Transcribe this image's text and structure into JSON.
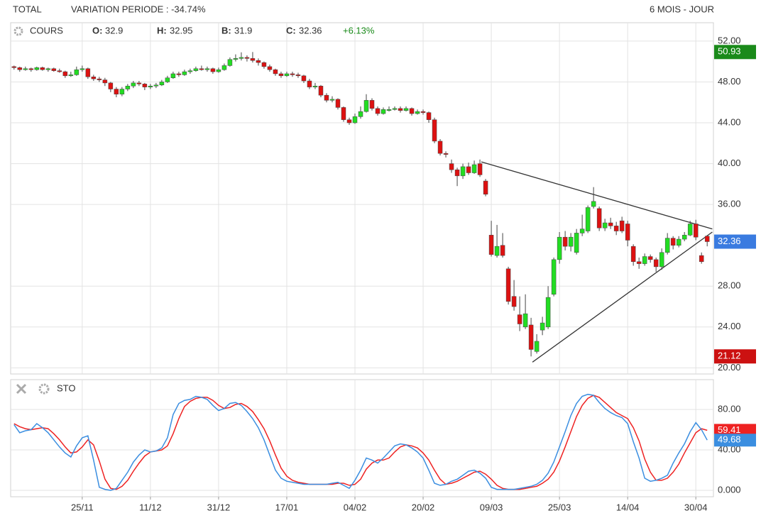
{
  "header": {
    "title": "TOTAL",
    "variation": "VARIATION PERIODE : -34.74%",
    "period": "6 MOIS - JOUR"
  },
  "chart_data": [
    {
      "type": "candlestick",
      "title": "COURS",
      "legend": [
        {
          "label": "O:",
          "value": 32.9
        },
        {
          "label": "H:",
          "value": 32.95
        },
        {
          "label": "B:",
          "value": 31.9
        },
        {
          "label": "C:",
          "value": 32.36
        }
      ],
      "change": "+6.13%",
      "up_color": "#22dd22",
      "down_color": "#dd1111",
      "xlim": [
        -0.6,
        123.1
      ],
      "ylim": [
        19.4,
        53.8
      ],
      "yticks": [
        {
          "value": 52,
          "label": "52.00"
        },
        {
          "value": 48,
          "label": "48.00"
        },
        {
          "value": 44,
          "label": "44.00"
        },
        {
          "value": 40,
          "label": "40.00"
        },
        {
          "value": 36,
          "label": "36.00"
        },
        {
          "value": 28,
          "label": "28.00"
        },
        {
          "value": 24,
          "label": "24.00"
        },
        {
          "value": 20,
          "label": "20.00"
        }
      ],
      "grid": true,
      "price_labels": [
        {
          "value": 50.93,
          "label": "50.93",
          "color": "#1a8a1a"
        },
        {
          "value": 32.36,
          "label": "32.36",
          "color": "#3a7be0"
        },
        {
          "value": 21.12,
          "label": "21.12",
          "color": "#cc1111"
        }
      ],
      "trendlines": [
        {
          "x": [
            82.25,
            122.9
          ],
          "y": [
            40.17,
            33.6
          ]
        },
        {
          "x": [
            91.25,
            122.9
          ],
          "y": [
            20.56,
            33.3
          ]
        }
      ],
      "candles": [
        [
          49.5,
          49.6,
          49.2,
          49.4
        ],
        [
          49.4,
          49.5,
          49.0,
          49.2
        ],
        [
          49.2,
          49.5,
          49.1,
          49.3
        ],
        [
          49.3,
          49.4,
          49.0,
          49.2
        ],
        [
          49.2,
          49.5,
          49.1,
          49.4
        ],
        [
          49.4,
          49.5,
          49.1,
          49.2
        ],
        [
          49.2,
          49.4,
          49.0,
          49.3
        ],
        [
          49.3,
          49.4,
          49.0,
          49.1
        ],
        [
          49.1,
          49.3,
          48.9,
          49.0
        ],
        [
          49.0,
          49.1,
          48.4,
          48.6
        ],
        [
          48.6,
          49.0,
          48.5,
          48.7
        ],
        [
          48.7,
          49.5,
          48.6,
          49.2
        ],
        [
          49.2,
          49.6,
          49.0,
          49.3
        ],
        [
          49.3,
          49.4,
          48.3,
          48.5
        ],
        [
          48.5,
          48.7,
          48.1,
          48.3
        ],
        [
          48.3,
          48.5,
          48.0,
          48.2
        ],
        [
          48.2,
          48.4,
          47.6,
          47.9
        ],
        [
          47.9,
          48.0,
          47.0,
          47.3
        ],
        [
          47.3,
          47.5,
          46.5,
          46.8
        ],
        [
          46.8,
          47.5,
          46.6,
          47.3
        ],
        [
          47.3,
          47.8,
          47.1,
          47.6
        ],
        [
          47.6,
          48.1,
          47.4,
          47.9
        ],
        [
          47.9,
          48.1,
          47.6,
          47.8
        ],
        [
          47.8,
          47.9,
          47.2,
          47.5
        ],
        [
          47.5,
          47.8,
          47.3,
          47.6
        ],
        [
          47.6,
          47.9,
          47.4,
          47.7
        ],
        [
          47.7,
          48.2,
          47.6,
          48.0
        ],
        [
          48.0,
          48.6,
          47.9,
          48.4
        ],
        [
          48.4,
          49.0,
          48.3,
          48.8
        ],
        [
          48.8,
          49.0,
          48.5,
          48.7
        ],
        [
          48.7,
          49.2,
          48.6,
          49.0
        ],
        [
          49.0,
          49.3,
          48.8,
          49.1
        ],
        [
          49.1,
          49.5,
          49.0,
          49.3
        ],
        [
          49.3,
          49.6,
          49.1,
          49.2
        ],
        [
          49.2,
          49.5,
          49.0,
          49.3
        ],
        [
          49.3,
          49.4,
          48.8,
          49.0
        ],
        [
          49.0,
          49.4,
          48.9,
          49.2
        ],
        [
          49.2,
          49.8,
          49.1,
          49.6
        ],
        [
          49.6,
          50.4,
          49.5,
          50.2
        ],
        [
          50.2,
          50.7,
          50.0,
          50.3
        ],
        [
          50.3,
          50.9,
          50.1,
          50.4
        ],
        [
          50.4,
          50.6,
          50.0,
          50.3
        ],
        [
          50.3,
          50.93,
          49.9,
          50.1
        ],
        [
          50.1,
          50.3,
          49.6,
          49.9
        ],
        [
          49.9,
          50.0,
          49.3,
          49.5
        ],
        [
          49.5,
          49.7,
          49.0,
          49.2
        ],
        [
          49.2,
          49.3,
          48.6,
          48.8
        ],
        [
          48.8,
          49.0,
          48.4,
          48.6
        ],
        [
          48.6,
          49.0,
          48.5,
          48.8
        ],
        [
          48.8,
          49.0,
          48.5,
          48.7
        ],
        [
          48.7,
          48.9,
          48.4,
          48.6
        ],
        [
          48.6,
          48.7,
          47.9,
          48.1
        ],
        [
          48.1,
          48.3,
          47.3,
          47.5
        ],
        [
          47.5,
          47.9,
          47.3,
          47.6
        ],
        [
          47.6,
          47.7,
          46.5,
          46.7
        ],
        [
          46.7,
          46.9,
          46.0,
          46.2
        ],
        [
          46.2,
          46.6,
          46.0,
          46.3
        ],
        [
          46.3,
          46.4,
          45.3,
          45.5
        ],
        [
          45.5,
          45.6,
          44.1,
          44.3
        ],
        [
          44.3,
          44.5,
          43.8,
          44.0
        ],
        [
          44.0,
          44.9,
          43.9,
          44.6
        ],
        [
          44.6,
          45.6,
          44.4,
          45.1
        ],
        [
          45.1,
          46.8,
          45.0,
          46.2
        ],
        [
          46.2,
          46.4,
          45.2,
          45.4
        ],
        [
          45.4,
          45.6,
          44.7,
          44.9
        ],
        [
          44.9,
          45.5,
          44.8,
          45.3
        ],
        [
          45.2,
          45.6,
          45.1,
          45.3
        ],
        [
          45.3,
          45.6,
          45.2,
          45.4
        ],
        [
          45.4,
          45.6,
          45.0,
          45.2
        ],
        [
          45.2,
          45.6,
          45.1,
          45.4
        ],
        [
          45.4,
          45.5,
          44.7,
          44.9
        ],
        [
          44.9,
          45.3,
          44.8,
          45.1
        ],
        [
          45.1,
          45.3,
          44.8,
          45.0
        ],
        [
          45.0,
          45.1,
          44.0,
          44.3
        ],
        [
          44.3,
          44.5,
          42.0,
          42.2
        ],
        [
          42.2,
          42.4,
          40.8,
          41.0
        ],
        [
          41.0,
          41.2,
          40.6,
          40.9
        ],
        [
          40.0,
          40.4,
          39.1,
          39.4
        ],
        [
          39.4,
          39.6,
          37.8,
          38.8
        ],
        [
          38.8,
          40.0,
          38.5,
          39.7
        ],
        [
          39.7,
          40.1,
          38.9,
          39.1
        ],
        [
          39.1,
          40.3,
          39.0,
          39.9
        ],
        [
          40.0,
          40.4,
          38.7,
          38.9
        ],
        [
          38.3,
          38.5,
          36.8,
          37.0
        ],
        [
          33.0,
          34.4,
          30.9,
          31.1
        ],
        [
          31.0,
          34.0,
          30.8,
          31.9
        ],
        [
          32.0,
          33.2,
          30.8,
          31.0
        ],
        [
          29.7,
          29.9,
          26.2,
          26.5
        ],
        [
          27.0,
          28.6,
          25.6,
          26.0
        ],
        [
          25.2,
          27.0,
          23.6,
          24.3
        ],
        [
          24.0,
          27.2,
          23.8,
          25.3
        ],
        [
          24.2,
          24.9,
          21.12,
          21.8
        ],
        [
          21.6,
          23.3,
          21.4,
          22.6
        ],
        [
          23.7,
          25.0,
          23.2,
          24.4
        ],
        [
          24.0,
          28.0,
          23.8,
          26.9
        ],
        [
          27.2,
          30.8,
          27.0,
          30.6
        ],
        [
          30.6,
          33.3,
          30.2,
          32.8
        ],
        [
          32.8,
          33.4,
          31.5,
          31.9
        ],
        [
          31.9,
          33.2,
          31.4,
          32.8
        ],
        [
          31.3,
          33.6,
          31.1,
          33.2
        ],
        [
          33.2,
          35.0,
          32.9,
          33.6
        ],
        [
          33.4,
          35.9,
          33.2,
          35.7
        ],
        [
          35.8,
          37.7,
          35.6,
          36.3
        ],
        [
          35.6,
          35.8,
          33.4,
          33.7
        ],
        [
          33.7,
          34.6,
          33.4,
          34.2
        ],
        [
          34.2,
          34.7,
          33.6,
          33.9
        ],
        [
          33.9,
          34.3,
          33.0,
          33.4
        ],
        [
          34.4,
          34.8,
          33.2,
          33.4
        ],
        [
          34.1,
          34.4,
          31.9,
          32.5
        ],
        [
          31.9,
          32.1,
          30.0,
          30.4
        ],
        [
          30.4,
          30.8,
          29.7,
          30.2
        ],
        [
          30.2,
          31.2,
          30.0,
          30.9
        ],
        [
          30.9,
          31.1,
          30.3,
          30.6
        ],
        [
          30.6,
          30.8,
          29.4,
          29.9
        ],
        [
          29.9,
          31.7,
          29.6,
          31.3
        ],
        [
          31.3,
          33.2,
          31.1,
          32.7
        ],
        [
          32.7,
          32.9,
          31.6,
          32.0
        ],
        [
          32.0,
          32.9,
          31.8,
          32.6
        ],
        [
          32.6,
          33.3,
          32.4,
          33.0
        ],
        [
          33.0,
          34.4,
          32.9,
          34.1
        ],
        [
          34.1,
          34.5,
          32.5,
          32.8
        ],
        [
          31.0,
          31.3,
          30.2,
          30.4
        ],
        [
          32.9,
          32.95,
          31.9,
          32.36
        ]
      ]
    },
    {
      "type": "line",
      "title": "STO",
      "xlim": [
        -0.6,
        123.1
      ],
      "ylim": [
        -6.3,
        109.5
      ],
      "yticks": [
        {
          "value": 80,
          "label": "80.00"
        },
        {
          "value": 40,
          "label": "40.00"
        },
        {
          "value": 0,
          "label": "0.000"
        }
      ],
      "grid": true,
      "xticks": [
        {
          "value": 12,
          "label": "25/11"
        },
        {
          "value": 24,
          "label": "11/12"
        },
        {
          "value": 36,
          "label": "31/12"
        },
        {
          "value": 48,
          "label": "17/01"
        },
        {
          "value": 60,
          "label": "04/02"
        },
        {
          "value": 72,
          "label": "20/02"
        },
        {
          "value": 84,
          "label": "09/03"
        },
        {
          "value": 96,
          "label": "25/03"
        },
        {
          "value": 108,
          "label": "14/04"
        },
        {
          "value": 120,
          "label": "30/04"
        }
      ],
      "series": [
        {
          "color": "#ee2222",
          "end_label": "59.41",
          "values": [
            66,
            63,
            61,
            60,
            61,
            62,
            61,
            56,
            50,
            43,
            37,
            38,
            43,
            50,
            45,
            29,
            11,
            2,
            1,
            4,
            10,
            19,
            27,
            34,
            38,
            39,
            40,
            44,
            56,
            71,
            83,
            88,
            91,
            92,
            92,
            89,
            84,
            81,
            82,
            85,
            86,
            83,
            78,
            70,
            61,
            49,
            35,
            22,
            14,
            10,
            8,
            7,
            6,
            6,
            6,
            6,
            6,
            7,
            7,
            5,
            6,
            11,
            21,
            27,
            30,
            30,
            32,
            38,
            43,
            45,
            44,
            42,
            37,
            30,
            20,
            11,
            6,
            7,
            9,
            12,
            15,
            18,
            19,
            16,
            11,
            5,
            2,
            1,
            1,
            1,
            2,
            3,
            4,
            7,
            11,
            18,
            29,
            43,
            58,
            73,
            84,
            91,
            94,
            92,
            87,
            82,
            77,
            74,
            71,
            62,
            49,
            31,
            18,
            10,
            10,
            12,
            18,
            26,
            37,
            47,
            57,
            61,
            59.41
          ]
        },
        {
          "color": "#3b8ee0",
          "end_label": "49.68",
          "values": [
            65,
            57,
            59,
            60,
            66,
            62,
            57,
            50,
            43,
            37,
            33,
            44,
            52,
            54,
            30,
            3,
            1,
            0,
            2,
            10,
            18,
            28,
            35,
            40,
            38,
            39,
            42,
            52,
            75,
            86,
            89,
            90,
            93,
            92,
            90,
            84,
            79,
            81,
            86,
            87,
            84,
            78,
            71,
            62,
            50,
            35,
            20,
            12,
            9,
            8,
            7,
            6,
            6,
            6,
            6,
            6,
            7,
            8,
            5,
            2,
            10,
            20,
            32,
            30,
            27,
            32,
            38,
            44,
            46,
            45,
            42,
            38,
            32,
            20,
            7,
            5,
            6,
            9,
            11,
            15,
            19,
            20,
            17,
            12,
            3,
            1,
            1,
            1,
            1,
            2,
            3,
            4,
            6,
            10,
            17,
            28,
            43,
            58,
            74,
            86,
            93,
            95,
            94,
            87,
            81,
            77,
            74,
            72,
            66,
            48,
            32,
            12,
            9,
            10,
            12,
            15,
            27,
            37,
            46,
            58,
            67,
            60,
            49.68
          ]
        }
      ]
    }
  ]
}
